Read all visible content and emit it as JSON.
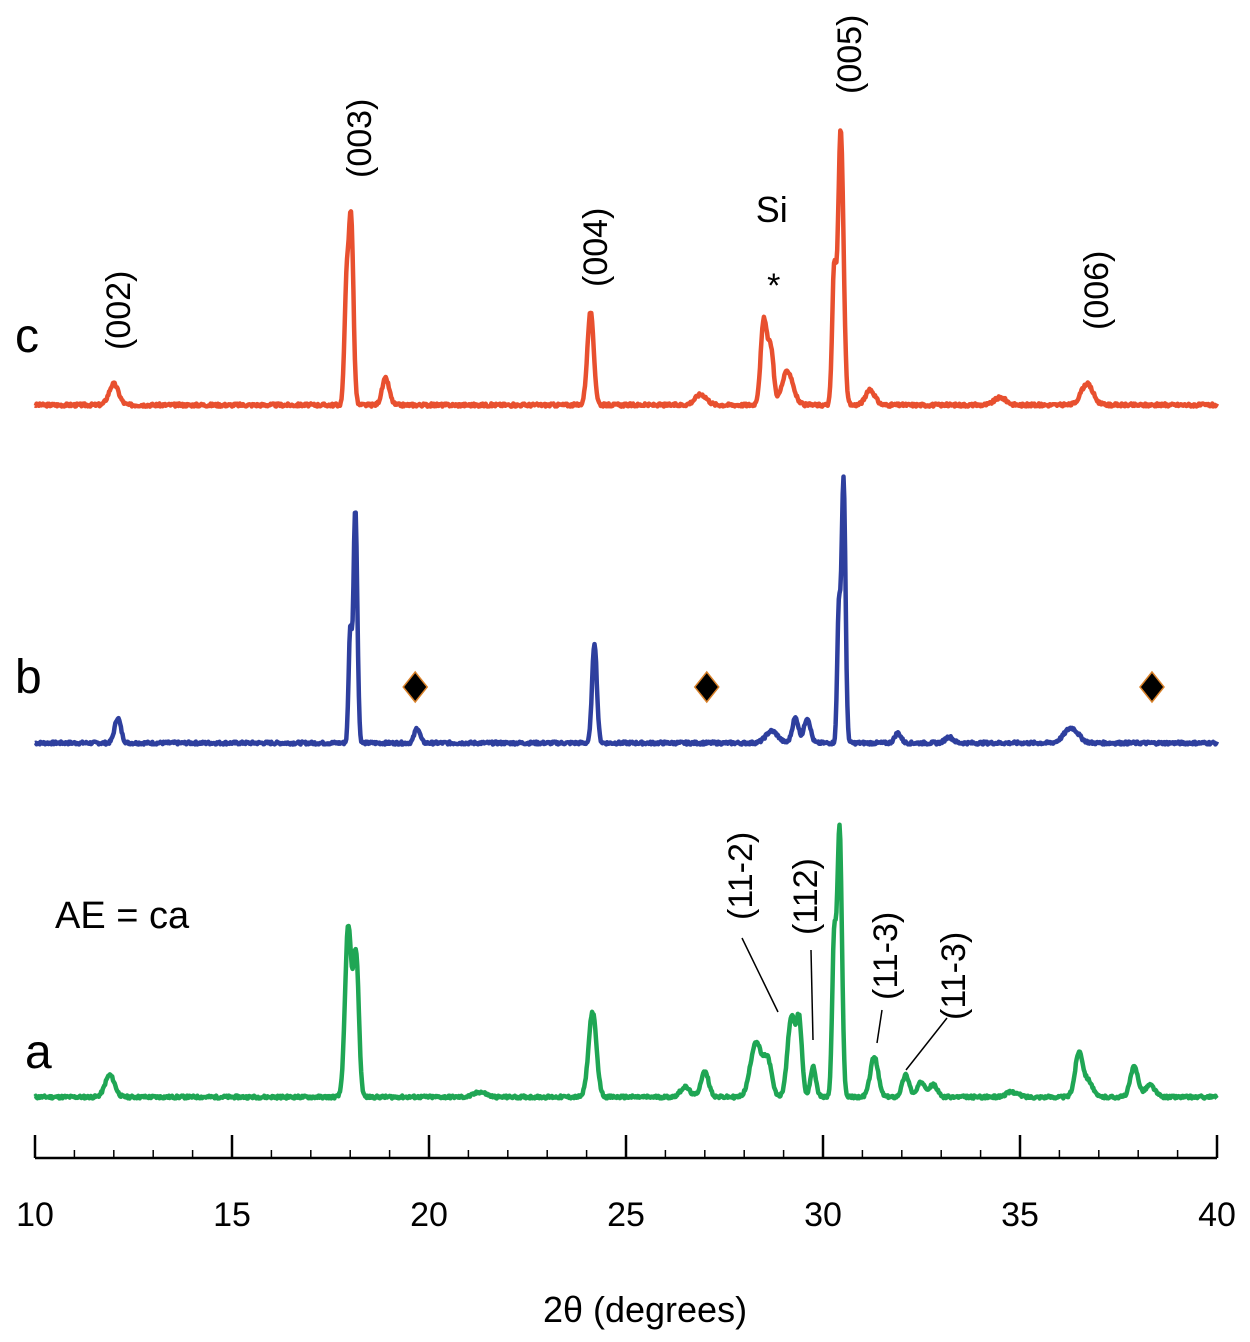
{
  "chart_data": {
    "type": "line",
    "xlabel": "2θ (degrees)",
    "ylabel": "",
    "xlim": [
      10,
      40
    ],
    "x_ticks": [
      10,
      15,
      20,
      25,
      30,
      35,
      40
    ],
    "x_tick_labels": [
      "10",
      "15",
      "20",
      "25",
      "30",
      "35",
      "40"
    ],
    "grid": false,
    "legend": "none",
    "y_axis_shown": false,
    "annotation_text": "AE = ca",
    "series": [
      {
        "name": "c",
        "color": "#e8502f",
        "baseline": 0,
        "peaks": [
          {
            "x": 12.0,
            "h": 20,
            "w": 0.12
          },
          {
            "x": 17.9,
            "h": 100,
            "w": 0.05
          },
          {
            "x": 18.02,
            "h": 178,
            "w": 0.06
          },
          {
            "x": 18.9,
            "h": 25,
            "w": 0.09
          },
          {
            "x": 24.1,
            "h": 88,
            "w": 0.08
          },
          {
            "x": 26.9,
            "h": 10,
            "w": 0.15
          },
          {
            "x": 28.5,
            "h": 80,
            "w": 0.08
          },
          {
            "x": 28.68,
            "h": 50,
            "w": 0.07
          },
          {
            "x": 29.1,
            "h": 32,
            "w": 0.14
          },
          {
            "x": 30.28,
            "h": 120,
            "w": 0.05
          },
          {
            "x": 30.45,
            "h": 260,
            "w": 0.07
          },
          {
            "x": 31.2,
            "h": 14,
            "w": 0.12
          },
          {
            "x": 34.5,
            "h": 7,
            "w": 0.15
          },
          {
            "x": 36.7,
            "h": 20,
            "w": 0.15
          }
        ],
        "peak_labels": [
          {
            "text": "(002)",
            "x": 12.0
          },
          {
            "text": "(003)",
            "x": 18.0
          },
          {
            "text": "(004)",
            "x": 24.2
          },
          {
            "text": "(005)",
            "x": 30.7
          },
          {
            "text": "(006)",
            "x": 37.2
          }
        ],
        "markers": [
          {
            "symbol": "*",
            "x": 28.7,
            "label": "Si"
          }
        ]
      },
      {
        "name": "b",
        "color": "#2e3f9e",
        "baseline": 0,
        "peaks": [
          {
            "x": 12.1,
            "h": 25,
            "w": 0.08
          },
          {
            "x": 18.0,
            "h": 110,
            "w": 0.04
          },
          {
            "x": 18.13,
            "h": 235,
            "w": 0.05
          },
          {
            "x": 19.7,
            "h": 15,
            "w": 0.07
          },
          {
            "x": 24.2,
            "h": 100,
            "w": 0.06
          },
          {
            "x": 28.7,
            "h": 12,
            "w": 0.15
          },
          {
            "x": 29.3,
            "h": 25,
            "w": 0.08
          },
          {
            "x": 29.6,
            "h": 25,
            "w": 0.08
          },
          {
            "x": 30.4,
            "h": 130,
            "w": 0.04
          },
          {
            "x": 30.52,
            "h": 265,
            "w": 0.05
          },
          {
            "x": 31.9,
            "h": 10,
            "w": 0.08
          },
          {
            "x": 33.2,
            "h": 6,
            "w": 0.1
          },
          {
            "x": 36.3,
            "h": 15,
            "w": 0.18
          }
        ],
        "markers": [
          {
            "symbol": "diamond",
            "x": 19.65
          },
          {
            "symbol": "diamond",
            "x": 27.05
          },
          {
            "symbol": "diamond",
            "x": 38.35
          }
        ]
      },
      {
        "name": "a",
        "color": "#1fa654",
        "baseline": 0,
        "peaks": [
          {
            "x": 11.9,
            "h": 22,
            "w": 0.12
          },
          {
            "x": 17.95,
            "h": 170,
            "w": 0.08
          },
          {
            "x": 18.15,
            "h": 140,
            "w": 0.07
          },
          {
            "x": 21.3,
            "h": 5,
            "w": 0.15
          },
          {
            "x": 24.15,
            "h": 85,
            "w": 0.1
          },
          {
            "x": 26.5,
            "h": 10,
            "w": 0.12
          },
          {
            "x": 27.0,
            "h": 25,
            "w": 0.1
          },
          {
            "x": 28.3,
            "h": 55,
            "w": 0.14
          },
          {
            "x": 28.6,
            "h": 35,
            "w": 0.1
          },
          {
            "x": 29.2,
            "h": 80,
            "w": 0.1
          },
          {
            "x": 29.4,
            "h": 70,
            "w": 0.07
          },
          {
            "x": 29.75,
            "h": 30,
            "w": 0.07
          },
          {
            "x": 30.28,
            "h": 150,
            "w": 0.05
          },
          {
            "x": 30.42,
            "h": 270,
            "w": 0.06
          },
          {
            "x": 31.3,
            "h": 40,
            "w": 0.1
          },
          {
            "x": 32.1,
            "h": 22,
            "w": 0.09
          },
          {
            "x": 32.5,
            "h": 15,
            "w": 0.1
          },
          {
            "x": 32.8,
            "h": 12,
            "w": 0.1
          },
          {
            "x": 34.8,
            "h": 5,
            "w": 0.15
          },
          {
            "x": 36.5,
            "h": 45,
            "w": 0.1
          },
          {
            "x": 36.75,
            "h": 15,
            "w": 0.1
          },
          {
            "x": 37.9,
            "h": 30,
            "w": 0.1
          },
          {
            "x": 38.3,
            "h": 12,
            "w": 0.12
          }
        ],
        "peak_labels": [
          {
            "text": "(11-2)",
            "x": 28.8
          },
          {
            "text": "(112)",
            "x": 29.7
          },
          {
            "text": "(11-3)",
            "x": 31.5
          },
          {
            "text": "(11-3)",
            "x": 32.1
          }
        ]
      }
    ]
  }
}
